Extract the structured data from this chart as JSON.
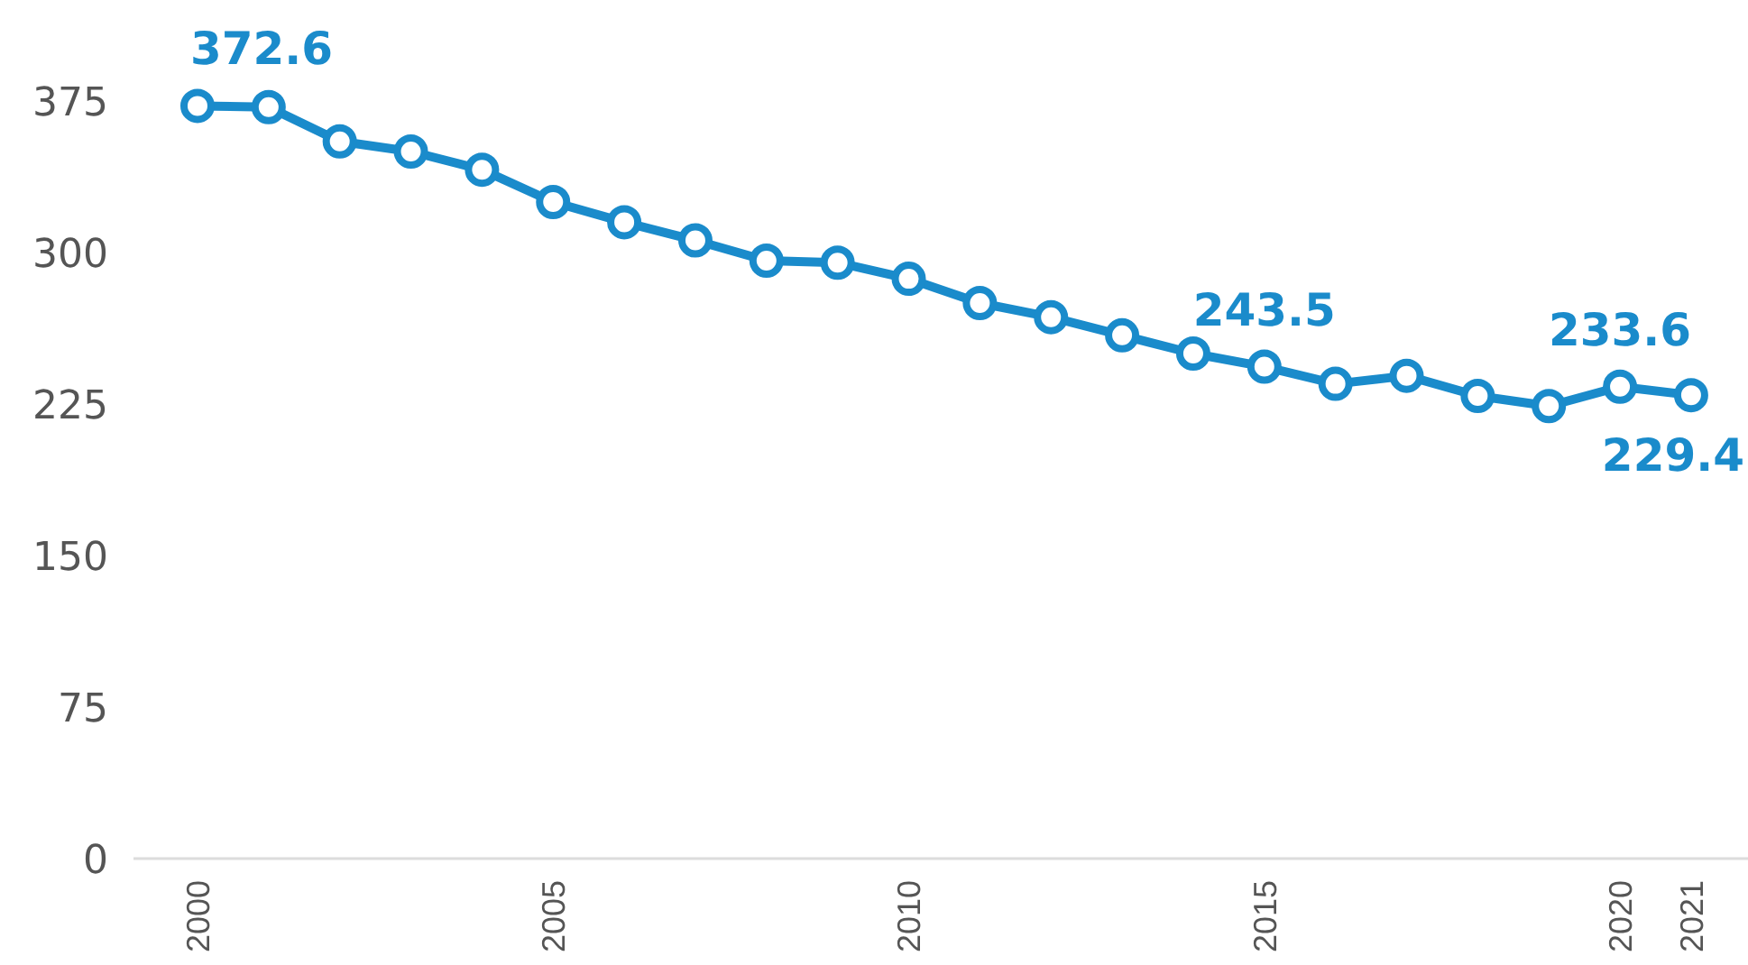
{
  "chart_data": {
    "type": "line",
    "x": [
      2000,
      2001,
      2002,
      2003,
      2004,
      2005,
      2006,
      2007,
      2008,
      2009,
      2010,
      2011,
      2012,
      2013,
      2014,
      2015,
      2016,
      2017,
      2018,
      2019,
      2020,
      2021
    ],
    "series": [
      {
        "color": "#1a8bcb",
        "values": [
          372.6,
          372,
          355,
          350,
          341,
          325,
          315,
          306,
          296,
          295,
          287,
          275,
          268,
          259,
          250,
          243.5,
          235,
          239,
          229,
          224,
          233.6,
          229.4
        ],
        "value_labels": [
          "372.6",
          null,
          null,
          null,
          null,
          null,
          null,
          null,
          null,
          null,
          null,
          null,
          null,
          null,
          null,
          "243.5",
          null,
          null,
          null,
          null,
          "233.6",
          "229.4"
        ]
      }
    ],
    "xlim": [
      1999.1,
      2021.8
    ],
    "ylim": [
      0,
      375
    ],
    "xticks": [
      2000,
      2005,
      2010,
      2015,
      2020,
      2021
    ],
    "yticks": [
      0,
      75,
      150,
      225,
      300,
      375
    ],
    "marker": "circle",
    "line_style": "solid"
  }
}
